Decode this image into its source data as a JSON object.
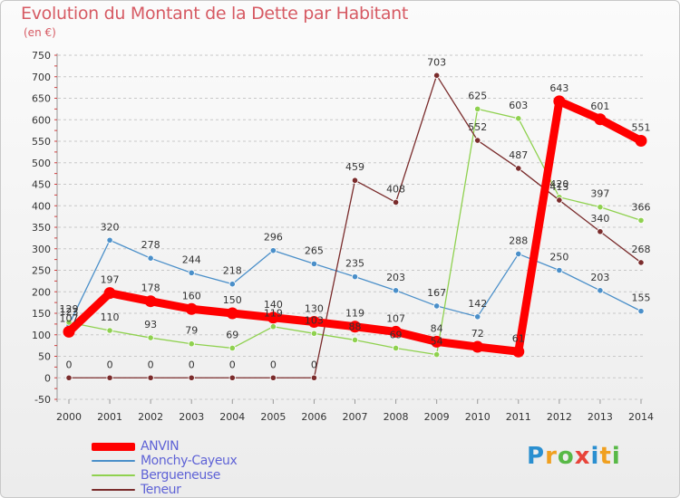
{
  "title": "Evolution du Montant de la Dette par Habitant",
  "subtitle": "(en €)",
  "logo": {
    "letters": [
      "P",
      "r",
      "o",
      "x",
      "i",
      "t",
      "i"
    ],
    "colors": [
      "#2a8fd0",
      "#f0a020",
      "#58b947",
      "#e8443a",
      "#2a8fd0",
      "#f0a020",
      "#58b947"
    ]
  },
  "colors": {
    "axis_text": "#333333",
    "grid": "#c8c8c8",
    "title": "#d65a63",
    "legend_text": "#5f63d6"
  },
  "chart_data": {
    "type": "line",
    "title": "Evolution du Montant de la Dette par Habitant",
    "subtitle": "(en €)",
    "x": [
      "2000",
      "2001",
      "2002",
      "2003",
      "2004",
      "2005",
      "2006",
      "2007",
      "2008",
      "2009",
      "2010",
      "2011",
      "2012",
      "2013",
      "2014"
    ],
    "ylim": [
      -50,
      750
    ],
    "yticks": [
      -50,
      0,
      50,
      100,
      150,
      200,
      250,
      300,
      350,
      400,
      450,
      500,
      550,
      600,
      650,
      700,
      750
    ],
    "grid": "horizontal dashed",
    "legend_placement": "bottom-left",
    "series": [
      {
        "name": "ANVIN",
        "color": "#ff0000",
        "emphasis": true,
        "values": [
          107,
          197,
          178,
          160,
          150,
          140,
          130,
          119,
          107,
          84,
          72,
          61,
          643,
          601,
          551
        ],
        "labels": [
          "107",
          "197",
          "178",
          "160",
          "150",
          "140",
          "130",
          "119",
          "107",
          "84",
          "72",
          "61",
          "643",
          "601",
          "551"
        ]
      },
      {
        "name": "Monchy-Cayeux",
        "color": "#4a8fc9",
        "emphasis": false,
        "values": [
          123,
          320,
          278,
          244,
          218,
          296,
          265,
          235,
          203,
          167,
          142,
          288,
          250,
          203,
          155
        ],
        "labels": [
          "123",
          "320",
          "278",
          "244",
          "218",
          "296",
          "265",
          "235",
          "203",
          "167",
          "142",
          "288",
          "250",
          "203",
          "155"
        ]
      },
      {
        "name": "Bergueneuse",
        "color": "#8fd14f",
        "emphasis": false,
        "values": [
          129,
          110,
          93,
          79,
          69,
          119,
          103,
          88,
          69,
          54,
          625,
          603,
          420,
          397,
          366
        ],
        "labels": [
          "129",
          "110",
          "93",
          "79",
          "69",
          "119",
          "103",
          "88",
          "69",
          "54",
          "625",
          "603",
          "420",
          "397",
          "366"
        ]
      },
      {
        "name": "Teneur",
        "color": "#7a2c2c",
        "emphasis": false,
        "values": [
          0,
          0,
          0,
          0,
          0,
          0,
          0,
          459,
          408,
          703,
          552,
          487,
          413,
          340,
          268
        ],
        "labels": [
          "0",
          "0",
          "0",
          "0",
          "0",
          "0",
          "0",
          "459",
          "408",
          "703",
          "552",
          "487",
          "413",
          "340",
          "268"
        ]
      }
    ]
  }
}
